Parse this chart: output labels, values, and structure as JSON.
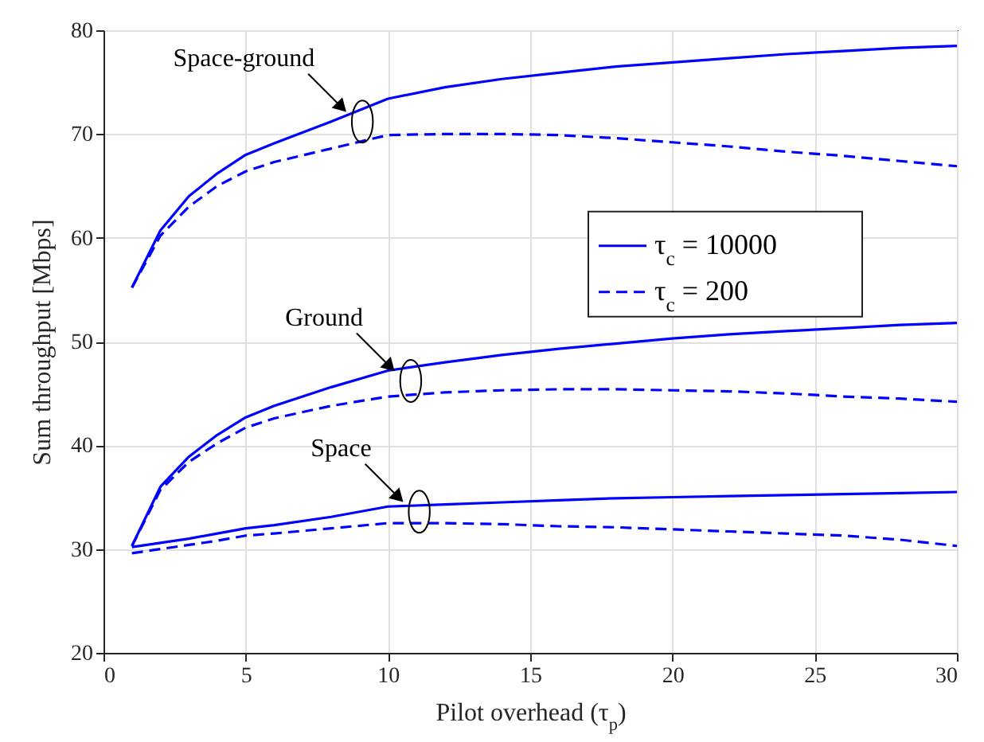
{
  "chart_data": {
    "type": "line",
    "xlabel": "Pilot overhead (τ$_{p}$)",
    "ylabel": "Sum throughput [Mbps]",
    "x": [
      1,
      2,
      3,
      4,
      5,
      6,
      8,
      10,
      12,
      14,
      16,
      18,
      20,
      22,
      24,
      26,
      28,
      30
    ],
    "series": [
      {
        "name": "τ$_{c}$ = 10000",
        "color": "#0000ff",
        "line_style": "solid",
        "values": [
          55.2,
          60.7,
          64.0,
          66.2,
          68.0,
          69.1,
          71.2,
          73.4,
          74.5,
          75.3,
          75.9,
          76.5,
          76.9,
          77.3,
          77.7,
          78.0,
          78.3,
          78.5
        ]
      },
      {
        "name": "τ$_{c}$ = 200",
        "color": "#0000ff",
        "line_style": "dashed",
        "values": [
          55.2,
          60.2,
          63.0,
          65.0,
          66.4,
          67.3,
          68.6,
          69.9,
          70.0,
          70.0,
          69.9,
          69.6,
          69.2,
          68.8,
          68.3,
          67.9,
          67.4,
          66.9
        ]
      },
      {
        "color": "#0000ff",
        "line_style": "solid",
        "values": [
          30.3,
          36.0,
          38.9,
          41.0,
          42.7,
          43.8,
          45.6,
          47.2,
          48.0,
          48.7,
          49.3,
          49.8,
          50.3,
          50.7,
          51.0,
          51.3,
          51.6,
          51.8
        ]
      },
      {
        "color": "#0000ff",
        "line_style": "dashed",
        "values": [
          30.3,
          35.7,
          38.4,
          40.2,
          41.7,
          42.6,
          43.8,
          44.7,
          45.1,
          45.3,
          45.4,
          45.4,
          45.3,
          45.2,
          45.0,
          44.7,
          44.5,
          44.2
        ]
      },
      {
        "color": "#0000ff",
        "line_style": "solid",
        "values": [
          30.2,
          30.6,
          31.0,
          31.5,
          32.0,
          32.3,
          33.1,
          34.1,
          34.3,
          34.5,
          34.7,
          34.9,
          35.0,
          35.1,
          35.2,
          35.3,
          35.4,
          35.5
        ]
      },
      {
        "color": "#0000ff",
        "line_style": "dashed",
        "values": [
          29.6,
          30.0,
          30.4,
          30.8,
          31.3,
          31.5,
          32.0,
          32.5,
          32.5,
          32.4,
          32.2,
          32.1,
          31.9,
          31.7,
          31.5,
          31.3,
          30.9,
          30.3
        ]
      }
    ],
    "annotations": [
      {
        "text": "Space-ground",
        "x": 9.1,
        "y": 71.2
      },
      {
        "text": "Ground",
        "x": 10.8,
        "y": 46.2
      },
      {
        "text": "Space",
        "x": 11.1,
        "y": 33.6
      }
    ],
    "xlim": [
      0,
      30
    ],
    "xticks": [
      0,
      5,
      10,
      15,
      20,
      25,
      30
    ],
    "ylim": [
      20,
      80
    ],
    "yticks": [
      20,
      30,
      40,
      50,
      60,
      70,
      80
    ],
    "grid": true,
    "legend": "right",
    "marker": "none"
  }
}
